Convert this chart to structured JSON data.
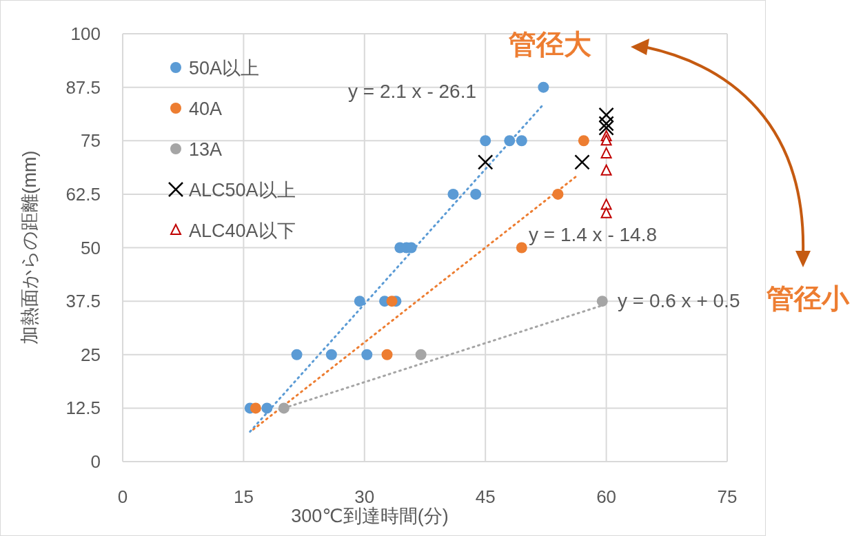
{
  "chart_data": {
    "type": "scatter",
    "xlabel": "300℃到達時間(分)",
    "ylabel": "加熱面からの距離(mm)",
    "xlim": [
      0,
      75
    ],
    "xticks": [
      0,
      15,
      30,
      45,
      60,
      75
    ],
    "ylim": [
      0,
      100
    ],
    "yticks": [
      0,
      12.5,
      25,
      37.5,
      50,
      62.5,
      75,
      87.5,
      100
    ],
    "grid": true,
    "legend": "top left",
    "series": [
      {
        "name": "50A以上",
        "color": "#5b9bd5",
        "marker": "circle",
        "x": [
          15.8,
          17.9,
          21.6,
          25.9,
          30.3,
          29.4,
          32.5,
          33.9,
          34.4,
          35.2,
          35.8,
          41,
          43.8,
          45,
          48,
          49.5,
          52.2
        ],
        "values": [
          12.5,
          12.5,
          25,
          25,
          25,
          37.5,
          37.5,
          37.5,
          50,
          50,
          50,
          62.5,
          62.5,
          75,
          75,
          75,
          87.5
        ]
      },
      {
        "name": "40A",
        "color": "#ed7d31",
        "marker": "circle",
        "x": [
          16.5,
          32.8,
          33.4,
          49.5,
          54,
          57.2
        ],
        "values": [
          12.5,
          25,
          37.5,
          50,
          62.5,
          75
        ]
      },
      {
        "name": "13A",
        "color": "#a5a5a5",
        "marker": "circle",
        "x": [
          20,
          37,
          59.5
        ],
        "values": [
          12.5,
          25,
          37.5
        ]
      },
      {
        "name": "ALC50A以上",
        "color": "#000000",
        "marker": "cross",
        "x": [
          45,
          57,
          60,
          60,
          60
        ],
        "values": [
          70,
          70,
          81,
          79,
          78
        ]
      },
      {
        "name": "ALC40A以下",
        "color": "#c00000",
        "marker": "triangle",
        "x": [
          60,
          60,
          60,
          60,
          60,
          60
        ],
        "values": [
          76,
          75,
          72,
          68,
          60,
          58
        ]
      },
      {
        "type": "line",
        "color": "#5b9bd5",
        "line_style": "dotted",
        "x": [
          15.8,
          52.2
        ],
        "values": [
          7,
          83.5
        ]
      },
      {
        "type": "line",
        "color": "#ed7d31",
        "line_style": "dotted",
        "x": [
          16.2,
          56.5
        ],
        "values": [
          7.5,
          67
        ]
      },
      {
        "type": "line",
        "color": "#a5a5a5",
        "line_style": "dotted",
        "x": [
          20,
          59.5
        ],
        "values": [
          12.5,
          36.5
        ]
      }
    ],
    "annotations": [
      "y = 2.1 x - 26.1",
      "y = 1.4 x - 14.8",
      "y = 0.6 x + 0.5",
      "管径大",
      "管径小"
    ]
  }
}
